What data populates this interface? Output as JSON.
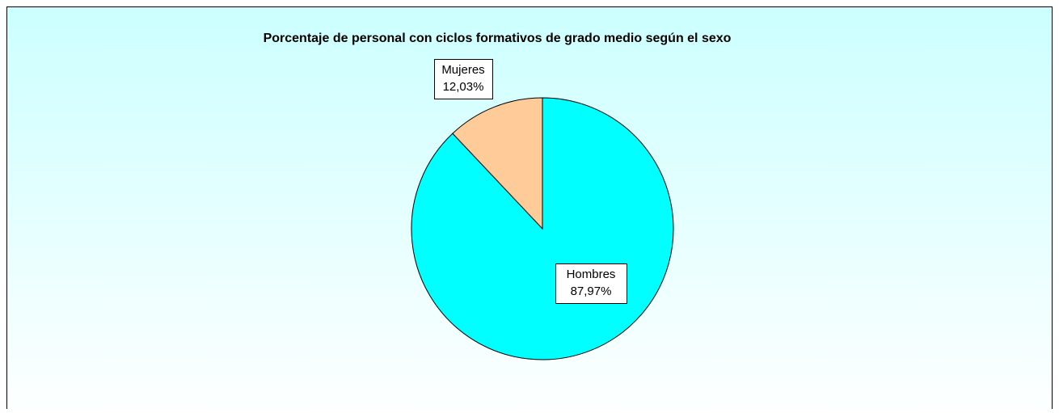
{
  "chart_data": {
    "type": "pie",
    "title": "Porcentaje de personal con ciclos formativos de grado medio según el sexo",
    "categories": [
      "Hombres",
      "Mujeres"
    ],
    "values": [
      87.97,
      12.03
    ],
    "value_labels": [
      "87,97%",
      "12,03%"
    ],
    "colors": [
      "#00ffff",
      "#ffcc99"
    ]
  }
}
